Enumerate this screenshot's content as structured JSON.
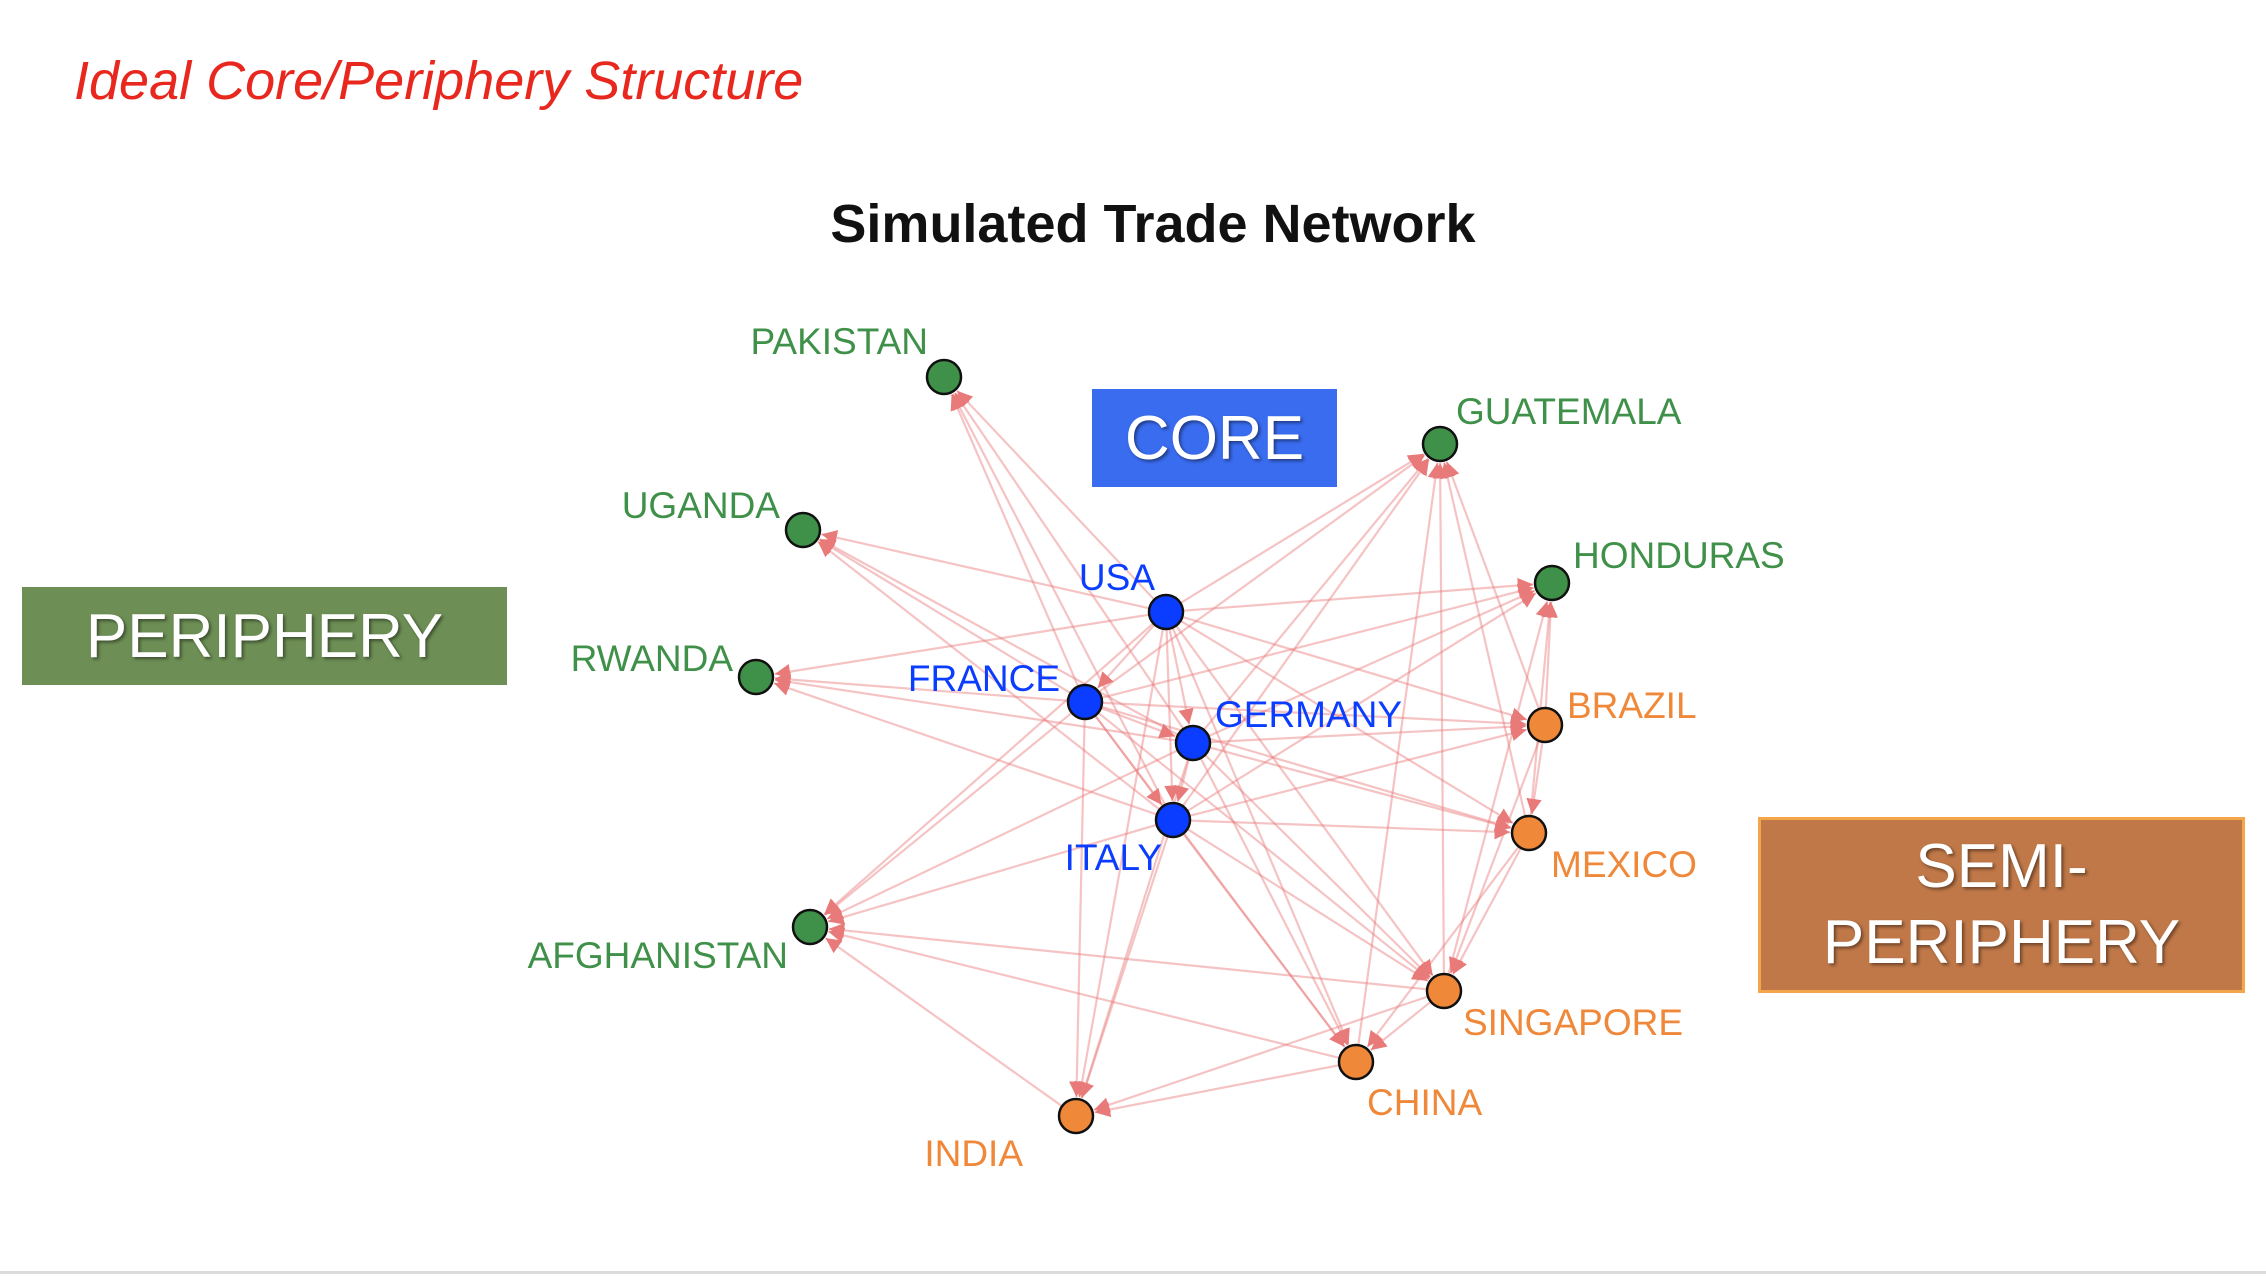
{
  "slide": {
    "title": "Ideal Core/Periphery Structure"
  },
  "diagram": {
    "title": "Simulated Trade Network",
    "edge_color": "#e87a7a",
    "groups": {
      "core": {
        "label": "CORE",
        "color": "#0a3dff",
        "box_color": "#3a6cf0"
      },
      "periphery": {
        "label": "PERIPHERY",
        "color": "#3f9048",
        "box_color": "#6d8f55"
      },
      "semi_periphery": {
        "label_line1": "SEMI-",
        "label_line2": "PERIPHERY",
        "color": "#f0883a",
        "box_color": "#c07848",
        "box_border": "#f3a64a"
      }
    },
    "nodes": [
      {
        "id": "pakistan",
        "label": "PAKISTAN",
        "group": "periphery"
      },
      {
        "id": "uganda",
        "label": "UGANDA",
        "group": "periphery"
      },
      {
        "id": "rwanda",
        "label": "RWANDA",
        "group": "periphery"
      },
      {
        "id": "afghanistan",
        "label": "AFGHANISTAN",
        "group": "periphery"
      },
      {
        "id": "guatemala",
        "label": "GUATEMALA",
        "group": "periphery"
      },
      {
        "id": "honduras",
        "label": "HONDURAS",
        "group": "periphery"
      },
      {
        "id": "usa",
        "label": "USA",
        "group": "core"
      },
      {
        "id": "france",
        "label": "FRANCE",
        "group": "core"
      },
      {
        "id": "germany",
        "label": "GERMANY",
        "group": "core"
      },
      {
        "id": "italy",
        "label": "ITALY",
        "group": "core"
      },
      {
        "id": "brazil",
        "label": "BRAZIL",
        "group": "semi_periphery"
      },
      {
        "id": "mexico",
        "label": "MEXICO",
        "group": "semi_periphery"
      },
      {
        "id": "singapore",
        "label": "SINGAPORE",
        "group": "semi_periphery"
      },
      {
        "id": "china",
        "label": "CHINA",
        "group": "semi_periphery"
      },
      {
        "id": "india",
        "label": "INDIA",
        "group": "semi_periphery"
      }
    ],
    "edges": [
      [
        "usa",
        "pakistan"
      ],
      [
        "usa",
        "uganda"
      ],
      [
        "usa",
        "rwanda"
      ],
      [
        "usa",
        "afghanistan"
      ],
      [
        "usa",
        "guatemala"
      ],
      [
        "usa",
        "honduras"
      ],
      [
        "usa",
        "brazil"
      ],
      [
        "usa",
        "mexico"
      ],
      [
        "usa",
        "singapore"
      ],
      [
        "usa",
        "china"
      ],
      [
        "usa",
        "india"
      ],
      [
        "france",
        "pakistan"
      ],
      [
        "france",
        "uganda"
      ],
      [
        "france",
        "rwanda"
      ],
      [
        "france",
        "afghanistan"
      ],
      [
        "france",
        "guatemala"
      ],
      [
        "france",
        "honduras"
      ],
      [
        "france",
        "brazil"
      ],
      [
        "france",
        "mexico"
      ],
      [
        "france",
        "singapore"
      ],
      [
        "france",
        "china"
      ],
      [
        "france",
        "india"
      ],
      [
        "germany",
        "pakistan"
      ],
      [
        "germany",
        "uganda"
      ],
      [
        "germany",
        "rwanda"
      ],
      [
        "germany",
        "afghanistan"
      ],
      [
        "germany",
        "guatemala"
      ],
      [
        "germany",
        "honduras"
      ],
      [
        "germany",
        "brazil"
      ],
      [
        "germany",
        "mexico"
      ],
      [
        "germany",
        "singapore"
      ],
      [
        "germany",
        "china"
      ],
      [
        "germany",
        "india"
      ],
      [
        "italy",
        "pakistan"
      ],
      [
        "italy",
        "uganda"
      ],
      [
        "italy",
        "rwanda"
      ],
      [
        "italy",
        "afghanistan"
      ],
      [
        "italy",
        "guatemala"
      ],
      [
        "italy",
        "honduras"
      ],
      [
        "italy",
        "brazil"
      ],
      [
        "italy",
        "mexico"
      ],
      [
        "italy",
        "singapore"
      ],
      [
        "italy",
        "china"
      ],
      [
        "italy",
        "india"
      ],
      [
        "usa",
        "france"
      ],
      [
        "usa",
        "germany"
      ],
      [
        "usa",
        "italy"
      ],
      [
        "france",
        "germany"
      ],
      [
        "france",
        "italy"
      ],
      [
        "germany",
        "italy"
      ],
      [
        "brazil",
        "guatemala"
      ],
      [
        "brazil",
        "honduras"
      ],
      [
        "mexico",
        "guatemala"
      ],
      [
        "mexico",
        "honduras"
      ],
      [
        "singapore",
        "guatemala"
      ],
      [
        "singapore",
        "honduras"
      ],
      [
        "china",
        "guatemala"
      ],
      [
        "brazil",
        "mexico"
      ],
      [
        "mexico",
        "singapore"
      ],
      [
        "brazil",
        "singapore"
      ],
      [
        "singapore",
        "china"
      ],
      [
        "china",
        "india"
      ],
      [
        "singapore",
        "india"
      ],
      [
        "mexico",
        "china"
      ],
      [
        "india",
        "afghanistan"
      ],
      [
        "china",
        "afghanistan"
      ],
      [
        "singapore",
        "afghanistan"
      ]
    ]
  }
}
